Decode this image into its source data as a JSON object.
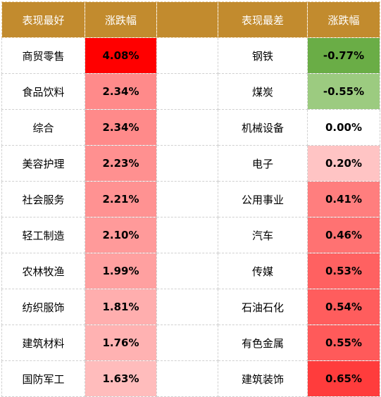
{
  "header": {
    "best_label": "表现最好",
    "change_label_left": "涨跌幅",
    "spacer": "",
    "worst_label": "表现最差",
    "change_label_right": "涨跌幅"
  },
  "colors": {
    "header_bg": "#c28b2e",
    "header_text": "#ffffff"
  },
  "rows": [
    {
      "best_name": "商贸零售",
      "best_change": "4.08%",
      "best_color": "#ff0000",
      "worst_name": "钢铁",
      "worst_change": "-0.77%",
      "worst_color": "#6aad46"
    },
    {
      "best_name": "食品饮料",
      "best_change": "2.34%",
      "best_color": "#ff8a8a",
      "worst_name": "煤炭",
      "worst_change": "-0.55%",
      "worst_color": "#9ccb80"
    },
    {
      "best_name": "综合",
      "best_change": "2.34%",
      "best_color": "#ff8a8a",
      "worst_name": "机械设备",
      "worst_change": "0.00%",
      "worst_color": "#ffffff"
    },
    {
      "best_name": "美容护理",
      "best_change": "2.23%",
      "best_color": "#ff9090",
      "worst_name": "电子",
      "worst_change": "0.20%",
      "worst_color": "#ffc4c4"
    },
    {
      "best_name": "社会服务",
      "best_change": "2.21%",
      "best_color": "#ff9292",
      "worst_name": "公用事业",
      "worst_change": "0.41%",
      "worst_color": "#ff7e7e"
    },
    {
      "best_name": "轻工制造",
      "best_change": "2.10%",
      "best_color": "#ff9a9a",
      "worst_name": "汽车",
      "worst_change": "0.46%",
      "worst_color": "#ff7272"
    },
    {
      "best_name": "农林牧渔",
      "best_change": "1.99%",
      "best_color": "#ffa0a0",
      "worst_name": "传媒",
      "worst_change": "0.53%",
      "worst_color": "#ff6161"
    },
    {
      "best_name": "纺织服饰",
      "best_change": "1.81%",
      "best_color": "#ffaeae",
      "worst_name": "石油石化",
      "worst_change": "0.54%",
      "worst_color": "#ff5d5d"
    },
    {
      "best_name": "建筑材料",
      "best_change": "1.76%",
      "best_color": "#ffb2b2",
      "worst_name": "有色金属",
      "worst_change": "0.55%",
      "worst_color": "#ff5a5a"
    },
    {
      "best_name": "国防军工",
      "best_change": "1.63%",
      "best_color": "#ffbcbc",
      "worst_name": "建筑装饰",
      "worst_change": "0.65%",
      "worst_color": "#ff3c3c"
    }
  ]
}
